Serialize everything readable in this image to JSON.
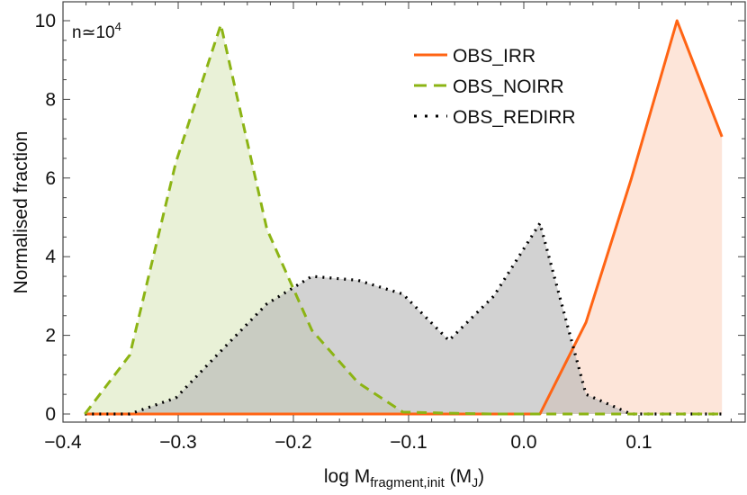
{
  "chart_data": {
    "type": "area",
    "title": "",
    "xlabel": {
      "main": "log M",
      "sub": "fragment,init",
      "unit_open": " (M",
      "unit_sub": "J",
      "unit_close": ")"
    },
    "ylabel": "Normalised fraction",
    "annotation": {
      "base": "n≃10",
      "sup": "4"
    },
    "xlim": [
      -0.4,
      0.19
    ],
    "ylim": [
      0,
      10.3
    ],
    "xticks": [
      -0.4,
      -0.3,
      -0.2,
      -0.1,
      0.0,
      0.1
    ],
    "xtick_labels": [
      "−0.4",
      "−0.3",
      "−0.2",
      "−0.1",
      "0.0",
      "0.1"
    ],
    "yticks": [
      0,
      2,
      4,
      6,
      8,
      10
    ],
    "ytick_labels": [
      "0",
      "2",
      "4",
      "6",
      "8",
      "10"
    ],
    "grid": false,
    "legend_position": "top-right",
    "x": [
      -0.381,
      -0.342,
      -0.302,
      -0.263,
      -0.223,
      -0.184,
      -0.144,
      -0.105,
      -0.065,
      -0.026,
      0.014,
      0.054,
      0.093,
      0.133,
      0.172
    ],
    "series": [
      {
        "name": "OBS_IRR",
        "style": "solid",
        "color": "#ff6414",
        "fill": "#fbd3bf",
        "values": [
          0,
          0,
          0,
          0,
          0,
          0,
          0,
          0,
          0,
          0,
          0,
          2.33,
          5.95,
          10.0,
          7.05
        ]
      },
      {
        "name": "OBS_NOIRR",
        "style": "dashed",
        "color": "#8cb414",
        "fill": "#dbe8bd",
        "values": [
          0,
          1.5,
          6.4,
          9.9,
          4.7,
          2.13,
          0.8,
          0.05,
          0.02,
          0,
          0,
          0,
          0,
          0,
          0
        ]
      },
      {
        "name": "OBS_REDIRR",
        "style": "dotted",
        "color": "#000000",
        "fill": "#b4b4b4",
        "values": [
          0,
          0,
          0.41,
          1.6,
          2.8,
          3.5,
          3.4,
          3.05,
          1.87,
          3.0,
          4.85,
          0.5,
          0,
          0,
          0
        ]
      }
    ]
  }
}
